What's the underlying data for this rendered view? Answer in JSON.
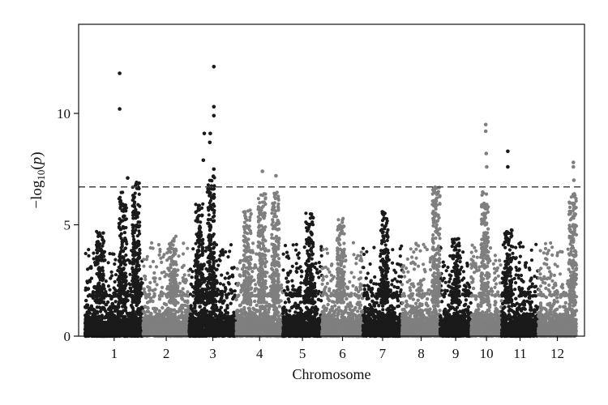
{
  "chart_data": {
    "type": "scatter",
    "title": "",
    "xlabel": "Chromosome",
    "ylabel_parts": {
      "prefix": "−log",
      "sub": "10",
      "open": "(",
      "var": "p",
      "close": ")"
    },
    "ylim": [
      0,
      14
    ],
    "yticks": [
      0,
      5,
      10
    ],
    "threshold": 6.7,
    "threshold_style": "dashed",
    "grid": false,
    "legend": "none",
    "colors": {
      "dark": "#1a1a1a",
      "light": "#7f7f7f",
      "threshold": "#444444"
    },
    "chromosomes": [
      {
        "label": "1",
        "start": 0,
        "end": 11.6,
        "color": "dark"
      },
      {
        "label": "2",
        "start": 11.6,
        "end": 20.8,
        "color": "light"
      },
      {
        "label": "3",
        "start": 20.8,
        "end": 30.2,
        "color": "dark"
      },
      {
        "label": "4",
        "start": 30.2,
        "end": 39.5,
        "color": "light"
      },
      {
        "label": "5",
        "start": 39.5,
        "end": 47.3,
        "color": "dark"
      },
      {
        "label": "6",
        "start": 47.3,
        "end": 55.5,
        "color": "light"
      },
      {
        "label": "7",
        "start": 55.5,
        "end": 63.3,
        "color": "dark"
      },
      {
        "label": "8",
        "start": 63.3,
        "end": 70.9,
        "color": "light"
      },
      {
        "label": "9",
        "start": 70.9,
        "end": 77.1,
        "color": "dark"
      },
      {
        "label": "10",
        "start": 77.1,
        "end": 83.2,
        "color": "light"
      },
      {
        "label": "11",
        "start": 83.2,
        "end": 90.5,
        "color": "dark"
      },
      {
        "label": "12",
        "start": 90.5,
        "end": 98.1,
        "color": "light"
      }
    ],
    "significant_points": [
      {
        "chr": "1",
        "x": 6.9,
        "y": 11.8
      },
      {
        "chr": "1",
        "x": 6.9,
        "y": 10.2
      },
      {
        "chr": "1",
        "x": 8.5,
        "y": 7.1
      },
      {
        "chr": "1",
        "x": 10.3,
        "y": 6.9
      },
      {
        "chr": "3",
        "x": 23.8,
        "y": 9.1
      },
      {
        "chr": "3",
        "x": 25.0,
        "y": 9.1
      },
      {
        "chr": "3",
        "x": 25.7,
        "y": 12.1
      },
      {
        "chr": "3",
        "x": 25.7,
        "y": 10.3
      },
      {
        "chr": "3",
        "x": 25.7,
        "y": 9.9
      },
      {
        "chr": "3",
        "x": 25.7,
        "y": 7.5
      },
      {
        "chr": "3",
        "x": 23.6,
        "y": 7.9
      },
      {
        "chr": "3",
        "x": 24.9,
        "y": 8.7
      },
      {
        "chr": "4",
        "x": 35.4,
        "y": 7.4
      },
      {
        "chr": "4",
        "x": 38.1,
        "y": 7.2
      },
      {
        "chr": "10",
        "x": 80.0,
        "y": 9.5
      },
      {
        "chr": "10",
        "x": 80.0,
        "y": 9.2
      },
      {
        "chr": "10",
        "x": 80.1,
        "y": 8.2
      },
      {
        "chr": "10",
        "x": 80.2,
        "y": 7.6
      },
      {
        "chr": "11",
        "x": 84.4,
        "y": 8.3
      },
      {
        "chr": "11",
        "x": 84.4,
        "y": 7.6
      },
      {
        "chr": "12",
        "x": 97.5,
        "y": 7.8
      },
      {
        "chr": "12",
        "x": 97.5,
        "y": 7.6
      },
      {
        "chr": "12",
        "x": 97.6,
        "y": 7.0
      }
    ],
    "peaks": [
      {
        "chr": "1",
        "x": 3.0,
        "height": 4.7
      },
      {
        "chr": "1",
        "x": 7.5,
        "height": 6.5
      },
      {
        "chr": "1",
        "x": 10.2,
        "height": 6.9
      },
      {
        "chr": "2",
        "x": 17.5,
        "height": 4.5
      },
      {
        "chr": "3",
        "x": 22.8,
        "height": 6.0
      },
      {
        "chr": "3",
        "x": 25.1,
        "height": 7.2
      },
      {
        "chr": "4",
        "x": 32.4,
        "height": 5.7
      },
      {
        "chr": "4",
        "x": 35.3,
        "height": 6.4
      },
      {
        "chr": "4",
        "x": 38.0,
        "height": 6.5
      },
      {
        "chr": "5",
        "x": 44.8,
        "height": 5.6
      },
      {
        "chr": "6",
        "x": 51.0,
        "height": 5.3
      },
      {
        "chr": "7",
        "x": 59.8,
        "height": 5.6
      },
      {
        "chr": "8",
        "x": 70.1,
        "height": 6.7
      },
      {
        "chr": "9",
        "x": 74.0,
        "height": 4.4
      },
      {
        "chr": "10",
        "x": 79.8,
        "height": 6.5
      },
      {
        "chr": "11",
        "x": 84.5,
        "height": 4.8
      },
      {
        "chr": "12",
        "x": 97.4,
        "height": 6.4
      }
    ]
  }
}
